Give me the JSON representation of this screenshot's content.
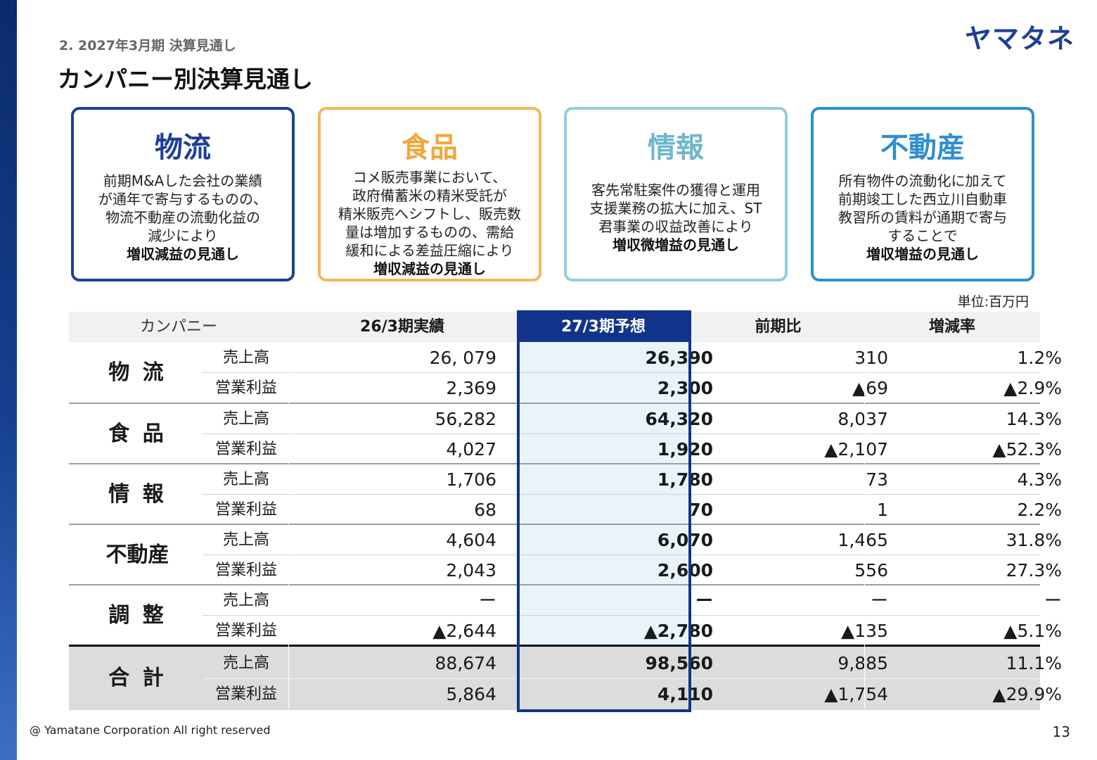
{
  "header": {
    "section": "2. 2027年3月期 決算見通し",
    "title": "カンパニー別決算見通し",
    "logo": "ヤマタネ"
  },
  "cards": [
    {
      "title": "物流",
      "lines": [
        "前期M&Aした会社の業績",
        "が通年で寄与するものの、",
        "物流不動産の流動化益の",
        "減少により"
      ],
      "result": "増収減益の見通し",
      "color": "#1f3f96"
    },
    {
      "title": "食品",
      "lines": [
        "コメ販売事業において、",
        "政府備蓄米の精米受託が",
        "精米販売へシフトし、販売数",
        "量は増加するものの、需給",
        "緩和による差益圧縮により"
      ],
      "result": "増収減益の見通し",
      "color": "#f0a73c"
    },
    {
      "title": "情報",
      "lines": [
        "客先常駐案件の獲得と運用",
        "支援業務の拡大に加え、ST",
        "君事業の収益改善により"
      ],
      "result": "増収微増益の見通し",
      "color": "#6fb7cc"
    },
    {
      "title": "不動産",
      "lines": [
        "所有物件の流動化に加えて",
        "前期竣工した西立川自動車",
        "教習所の賃料が通期で寄与",
        "することで"
      ],
      "result": "増収増益の見通し",
      "color": "#2d8fd0"
    }
  ],
  "unit": "単位:百万円",
  "table": {
    "headers": {
      "company": "カンパニー",
      "prev": "26/3期実績",
      "next": "27/3期予想",
      "diff": "前期比",
      "rate": "増減率"
    },
    "groups": [
      {
        "name": "物 流",
        "rows": [
          {
            "metric": "売上高",
            "prev": "26, 079",
            "next": "26,390",
            "diff": "310",
            "rate": "1.2%"
          },
          {
            "metric": "営業利益",
            "prev": "2,369",
            "next": "2,300",
            "diff": "▲69",
            "rate": "▲2.9%"
          }
        ]
      },
      {
        "name": "食 品",
        "rows": [
          {
            "metric": "売上高",
            "prev": "56,282",
            "next": "64,320",
            "diff": "8,037",
            "rate": "14.3%"
          },
          {
            "metric": "営業利益",
            "prev": "4,027",
            "next": "1,920",
            "diff": "▲2,107",
            "rate": "▲52.3%"
          }
        ]
      },
      {
        "name": "情 報",
        "rows": [
          {
            "metric": "売上高",
            "prev": "1,706",
            "next": "1,780",
            "diff": "73",
            "rate": "4.3%"
          },
          {
            "metric": "営業利益",
            "prev": "68",
            "next": "70",
            "diff": "1",
            "rate": "2.2%"
          }
        ]
      },
      {
        "name": "不動産",
        "rows": [
          {
            "metric": "売上高",
            "prev": "4,604",
            "next": "6,070",
            "diff": "1,465",
            "rate": "31.8%"
          },
          {
            "metric": "営業利益",
            "prev": "2,043",
            "next": "2,600",
            "diff": "556",
            "rate": "27.3%"
          }
        ]
      },
      {
        "name": "調 整",
        "rows": [
          {
            "metric": "売上高",
            "prev": "ー",
            "next": "ー",
            "diff": "ー",
            "rate": "ー"
          },
          {
            "metric": "営業利益",
            "prev": "▲2,644",
            "next": "▲2,780",
            "diff": "▲135",
            "rate": "▲5.1%"
          }
        ]
      },
      {
        "name": "合 計",
        "rows": [
          {
            "metric": "売上高",
            "prev": "88,674",
            "next": "98,560",
            "diff": "9,885",
            "rate": "11.1%"
          },
          {
            "metric": "営業利益",
            "prev": "5,864",
            "next": "4,110",
            "diff": "▲1,754",
            "rate": "▲29.9%"
          }
        ]
      }
    ]
  },
  "footer": {
    "copyright": "@ Yamatane Corporation All right reserved",
    "page": "13"
  }
}
